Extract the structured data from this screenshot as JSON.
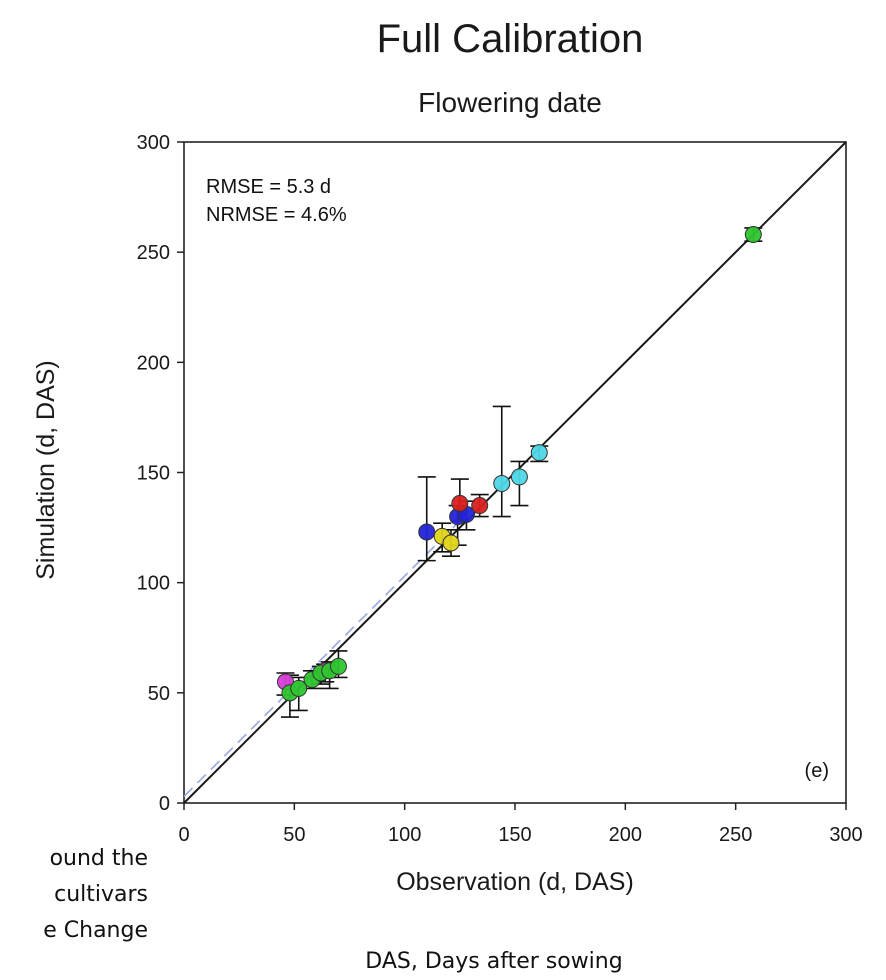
{
  "side_text": [
    "ound the",
    "cultivars",
    "e Change"
  ],
  "footnote": "DAS, Days after sowing",
  "chart_data": {
    "type": "scatter",
    "title": "Full Calibration",
    "subtitle": "Flowering date",
    "xlabel": "Observation (d, DAS)",
    "ylabel": "Simulation (d, DAS)",
    "xlim": [
      0,
      300
    ],
    "ylim": [
      0,
      300
    ],
    "xticks": [
      "0",
      "50",
      "100",
      "150",
      "200",
      "250",
      "300"
    ],
    "yticks": [
      "0",
      "50",
      "100",
      "150",
      "200",
      "250",
      "300"
    ],
    "annotations": [
      "RMSE = 5.3 d",
      "NRMSE = 4.6%"
    ],
    "panel_label": "(e)",
    "grid": false,
    "lines": [
      {
        "name": "1:1",
        "x": [
          0,
          300
        ],
        "y": [
          0,
          300
        ],
        "color": "#1a1a1a",
        "style": "solid"
      },
      {
        "name": "regression",
        "x": [
          0,
          135
        ],
        "y": [
          3,
          138
        ],
        "color": "#9aa6e6",
        "style": "dashed"
      }
    ],
    "series": [
      {
        "color": "#d63ed6",
        "points": [
          {
            "x": 46,
            "y": 55,
            "lo": 49,
            "hi": 59
          },
          {
            "x": 64,
            "y": 60,
            "lo": 55,
            "hi": 63
          }
        ]
      },
      {
        "color": "#2ec52e",
        "points": [
          {
            "x": 48,
            "y": 50,
            "lo": 39,
            "hi": 58
          },
          {
            "x": 52,
            "y": 52,
            "lo": 42,
            "hi": 57
          },
          {
            "x": 58,
            "y": 56,
            "lo": 52,
            "hi": 60
          },
          {
            "x": 62,
            "y": 59,
            "lo": 54,
            "hi": 62
          },
          {
            "x": 66,
            "y": 60,
            "lo": 52,
            "hi": 64
          },
          {
            "x": 70,
            "y": 62,
            "lo": 57,
            "hi": 69
          },
          {
            "x": 258,
            "y": 258,
            "lo": 255,
            "hi": 261
          }
        ]
      },
      {
        "color": "#2323d8",
        "points": [
          {
            "x": 110,
            "y": 123,
            "lo": 110,
            "hi": 148
          },
          {
            "x": 124,
            "y": 130,
            "lo": 117,
            "hi": 135
          },
          {
            "x": 128,
            "y": 131,
            "lo": 124,
            "hi": 137
          }
        ]
      },
      {
        "color": "#d81f1f",
        "points": [
          {
            "x": 125,
            "y": 136,
            "lo": 128,
            "hi": 147
          },
          {
            "x": 134,
            "y": 135,
            "lo": 130,
            "hi": 140
          }
        ]
      },
      {
        "color": "#e3d419",
        "points": [
          {
            "x": 117,
            "y": 121,
            "lo": 114,
            "hi": 127
          },
          {
            "x": 121,
            "y": 118,
            "lo": 112,
            "hi": 124
          }
        ]
      },
      {
        "color": "#4fd7e6",
        "points": [
          {
            "x": 144,
            "y": 145,
            "lo": 130,
            "hi": 180
          },
          {
            "x": 152,
            "y": 148,
            "lo": 135,
            "hi": 155
          },
          {
            "x": 161,
            "y": 159,
            "lo": 155,
            "hi": 162
          }
        ]
      }
    ]
  }
}
